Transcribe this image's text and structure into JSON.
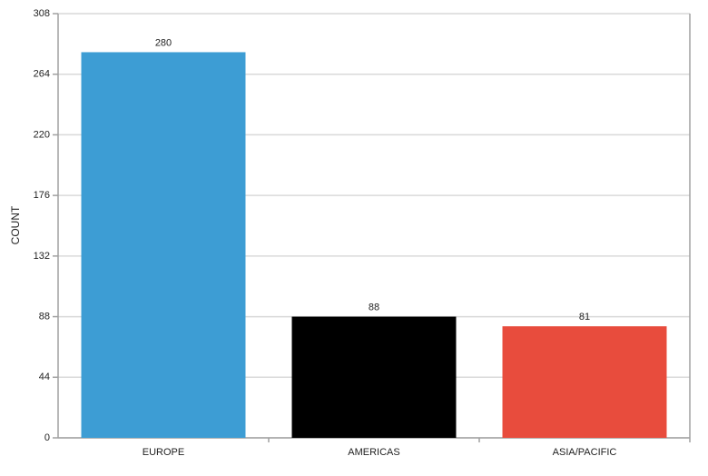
{
  "chart_data": {
    "type": "bar",
    "y_label": "COUNT",
    "categories": [
      "EUROPE",
      "AMERICAS",
      "ASIA/PACIFIC"
    ],
    "values": [
      280,
      88,
      81
    ],
    "colors": [
      "#3d9dd4",
      "#000000",
      "#e84c3d"
    ],
    "ylim": [
      0,
      308
    ],
    "yticks": [
      0,
      44,
      88,
      132,
      176,
      220,
      264,
      308
    ],
    "grid": true
  }
}
